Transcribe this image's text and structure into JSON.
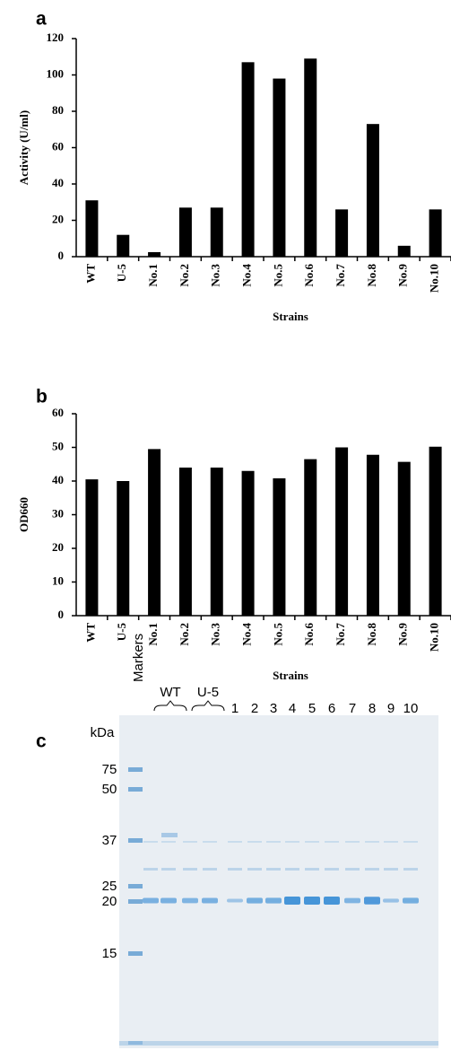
{
  "chart_data": [
    {
      "type": "bar",
      "panel": "a",
      "y_label": "Activity (U/ml)",
      "x_label": "Strains",
      "categories": [
        "WT",
        "U-5",
        "No.1",
        "No.2",
        "No.3",
        "No.4",
        "No.5",
        "No.6",
        "No.7",
        "No.8",
        "No.9",
        "No.10"
      ],
      "values": [
        31,
        12,
        2.5,
        27,
        27,
        107,
        98,
        109,
        26,
        73,
        6,
        26
      ],
      "color": "#000000",
      "ylim": [
        0,
        120
      ],
      "yticks": [
        0,
        20,
        40,
        60,
        80,
        100,
        120
      ]
    },
    {
      "type": "bar",
      "panel": "b",
      "y_label": "OD660",
      "x_label": "Strains",
      "categories": [
        "WT",
        "U-5",
        "No.1",
        "No.2",
        "No.3",
        "No.4",
        "No.5",
        "No.6",
        "No.7",
        "No.8",
        "No.9",
        "No.10"
      ],
      "values": [
        40.5,
        40,
        49.5,
        44,
        44,
        43,
        40.8,
        46.5,
        50,
        47.8,
        45.7,
        50.2
      ],
      "color": "#000000",
      "ylim": [
        0,
        60
      ],
      "yticks": [
        0,
        10,
        20,
        30,
        40,
        50,
        60
      ]
    }
  ],
  "gel": {
    "panel": "c",
    "marker_label": "Markers",
    "groups": [
      "WT",
      "U-5"
    ],
    "lanes": [
      "1",
      "2",
      "3",
      "4",
      "5",
      "6",
      "7",
      "8",
      "9",
      "10"
    ],
    "unit": "kDa",
    "marker_sizes": [
      "75",
      "50",
      "37",
      "25",
      "20",
      "15"
    ]
  }
}
